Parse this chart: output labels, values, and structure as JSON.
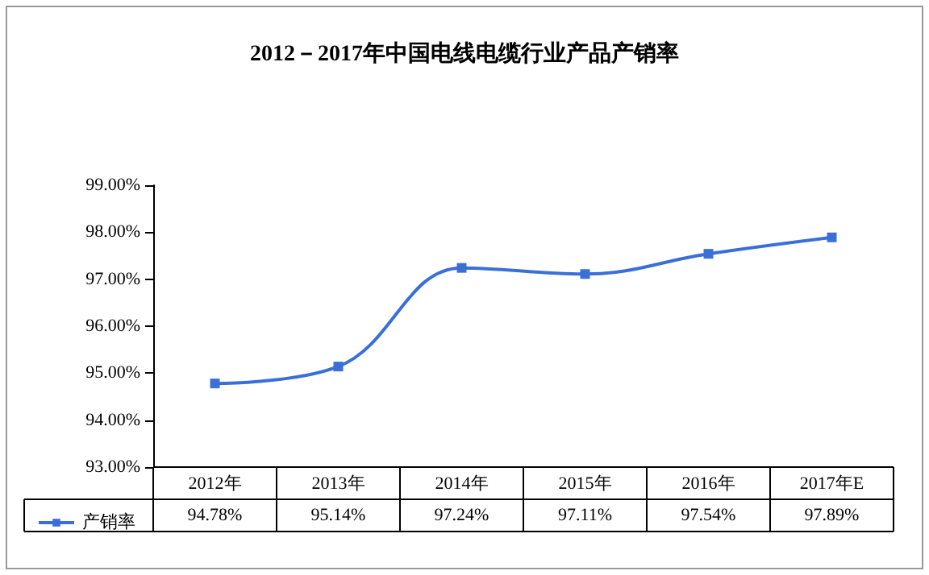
{
  "chart_data": {
    "type": "line",
    "title": "2012－2017年中国电线电缆行业产品产销率",
    "categories": [
      "2012年",
      "2013年",
      "2014年",
      "2015年",
      "2016年",
      "2017年E"
    ],
    "series": [
      {
        "name": "产销率",
        "color": "#3a6fd8",
        "values": [
          94.78,
          95.14,
          97.24,
          97.11,
          97.54,
          97.89
        ],
        "value_labels": [
          "94.78%",
          "95.14%",
          "97.24%",
          "97.11%",
          "97.54%",
          "97.89%"
        ]
      }
    ],
    "ylim": [
      93,
      99
    ],
    "yticks": [
      {
        "value": 93,
        "label": "93.00%"
      },
      {
        "value": 94,
        "label": "94.00%"
      },
      {
        "value": 95,
        "label": "95.00%"
      },
      {
        "value": 96,
        "label": "96.00%"
      },
      {
        "value": 97,
        "label": "97.00%"
      },
      {
        "value": 98,
        "label": "98.00%"
      },
      {
        "value": 99,
        "label": "99.00%"
      }
    ],
    "marker": "square",
    "legend": "bottom left"
  }
}
